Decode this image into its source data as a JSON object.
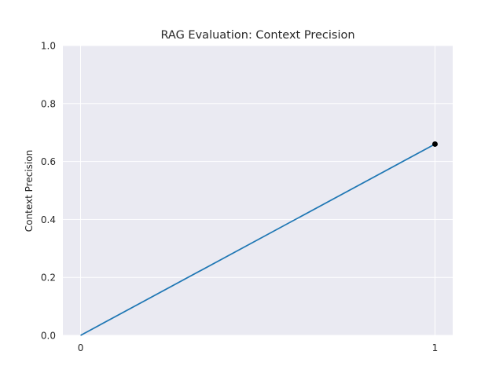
{
  "chart_data": {
    "type": "line",
    "title": "RAG Evaluation: Context Precision",
    "xlabel": "",
    "ylabel": "Context Precision",
    "x": [
      0,
      1
    ],
    "series": [
      {
        "values": [
          0.0,
          0.66
        ],
        "color": "#1f77b4"
      }
    ],
    "markers": [
      {
        "x": 1,
        "y": 0.66,
        "color": "#000000"
      }
    ],
    "xticks": [
      0,
      1
    ],
    "xtick_labels": [
      "0",
      "1"
    ],
    "yticks": [
      0.0,
      0.2,
      0.4,
      0.6,
      0.8,
      1.0
    ],
    "ytick_labels": [
      "0.0",
      "0.2",
      "0.4",
      "0.6",
      "0.8",
      "1.0"
    ],
    "xlim": [
      -0.05,
      1.05
    ],
    "ylim": [
      0.0,
      1.0
    ],
    "grid": true,
    "style": {
      "plot_background": "#eaeaf2",
      "grid_color": "#ffffff",
      "text_color": "#262626"
    }
  }
}
